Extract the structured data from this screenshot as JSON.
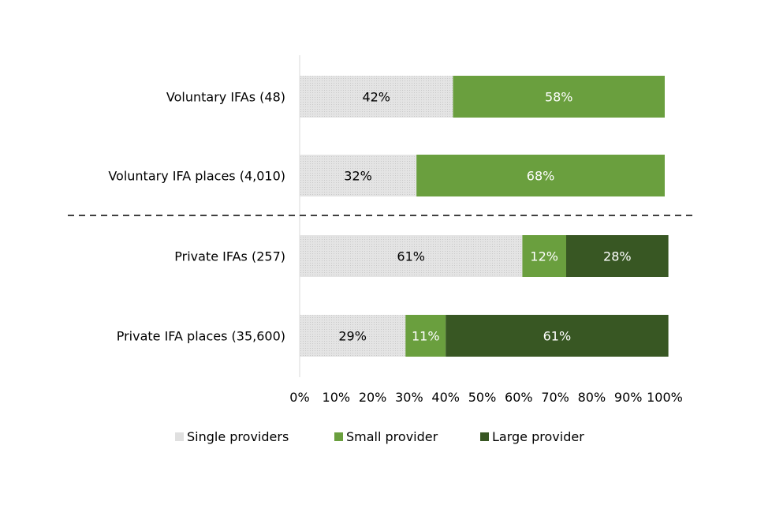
{
  "chart_data": {
    "type": "bar",
    "orientation": "horizontal",
    "stacked": true,
    "percent_stacked": true,
    "categories": [
      "Voluntary IFAs (48)",
      "Voluntary IFA places (4,010)",
      "Private IFAs (257)",
      "Private IFA places (35,600)"
    ],
    "series": [
      {
        "name": "Single providers",
        "color": "#e0e0e0",
        "values": [
          42,
          32,
          61,
          29
        ],
        "labels": [
          "42%",
          "32%",
          "61%",
          "29%"
        ]
      },
      {
        "name": "Small provider",
        "color": "#6a9f3e",
        "values": [
          58,
          68,
          12,
          11
        ],
        "labels": [
          "58%",
          "68%",
          "12%",
          "11%"
        ]
      },
      {
        "name": "Large provider",
        "color": "#385723",
        "values": [
          0,
          0,
          28,
          61
        ],
        "labels": [
          "",
          "",
          "28%",
          "61%"
        ]
      }
    ],
    "xlim": [
      0,
      100
    ],
    "xticks": [
      "0%",
      "10%",
      "20%",
      "30%",
      "40%",
      "50%",
      "60%",
      "70%",
      "80%",
      "90%",
      "100%"
    ],
    "legend_position": "bottom",
    "grid": false,
    "separator": "dashed line between voluntary and private groups"
  }
}
